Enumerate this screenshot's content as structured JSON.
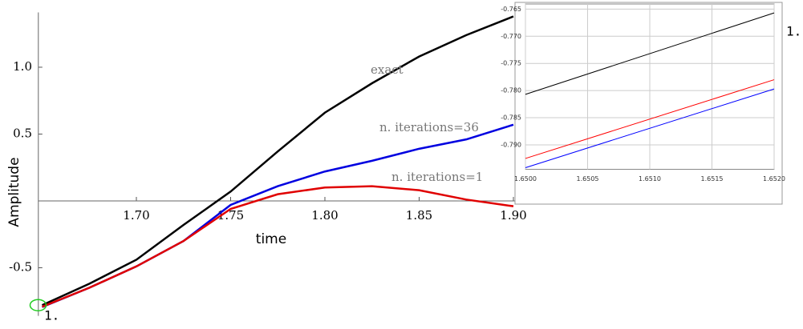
{
  "chart_data": [
    {
      "type": "line",
      "x_label": "time",
      "y_label": "Amplitude",
      "annotation": "1.",
      "x": [
        1.65,
        1.675,
        1.7,
        1.725,
        1.75,
        1.775,
        1.8,
        1.825,
        1.85,
        1.875,
        1.9
      ],
      "series": [
        {
          "name": "exact",
          "color": "#000000",
          "values": [
            -0.78,
            -0.62,
            -0.44,
            -0.18,
            0.07,
            0.37,
            0.66,
            0.88,
            1.08,
            1.24,
            1.38
          ]
        },
        {
          "name": "n. iterations=36",
          "color": "#0000e0",
          "values": [
            -0.794,
            -0.65,
            -0.49,
            -0.3,
            -0.03,
            0.11,
            0.22,
            0.3,
            0.39,
            0.46,
            0.57
          ]
        },
        {
          "name": "n. iterations=1",
          "color": "#e00000",
          "values": [
            -0.792,
            -0.65,
            -0.49,
            -0.3,
            -0.06,
            0.05,
            0.1,
            0.11,
            0.08,
            0.01,
            -0.04
          ]
        }
      ],
      "xlim": [
        1.648,
        1.905
      ],
      "ylim": [
        -0.86,
        1.41
      ],
      "xticks": [
        {
          "value": 1.7,
          "label": "1.70"
        },
        1.75,
        {
          "value": 1.8,
          "label": "1.80"
        },
        1.85,
        {
          "value": 1.9,
          "label": "1.90"
        }
      ],
      "yticks": [
        -0.5,
        0.5,
        {
          "value": 1.0,
          "label": "1.0"
        }
      ],
      "grid": false
    },
    {
      "type": "line",
      "annotation": "1.",
      "x": [
        1.65,
        1.652
      ],
      "series": [
        {
          "color": "#000000",
          "values": [
            -0.7807,
            -0.7657
          ]
        },
        {
          "color": "#ff0000",
          "values": [
            -0.7925,
            -0.778
          ]
        },
        {
          "color": "#0000ff",
          "values": [
            -0.7942,
            -0.7797
          ]
        }
      ],
      "xlim": [
        1.65,
        1.652
      ],
      "ylim": [
        -0.7945,
        -0.7645
      ],
      "xticks": [
        {
          "value": 1.65,
          "label": "1.6500"
        },
        1.6505,
        {
          "value": 1.651,
          "label": "1.6510"
        },
        1.6515,
        {
          "value": 1.652,
          "label": "1.6520"
        }
      ],
      "yticks": [
        -0.765,
        {
          "value": -0.77,
          "label": "-0.770"
        },
        -0.775,
        {
          "value": -0.78,
          "label": "-0.780"
        },
        -0.785,
        {
          "value": -0.79,
          "label": "-0.790"
        }
      ],
      "grid": true
    }
  ]
}
